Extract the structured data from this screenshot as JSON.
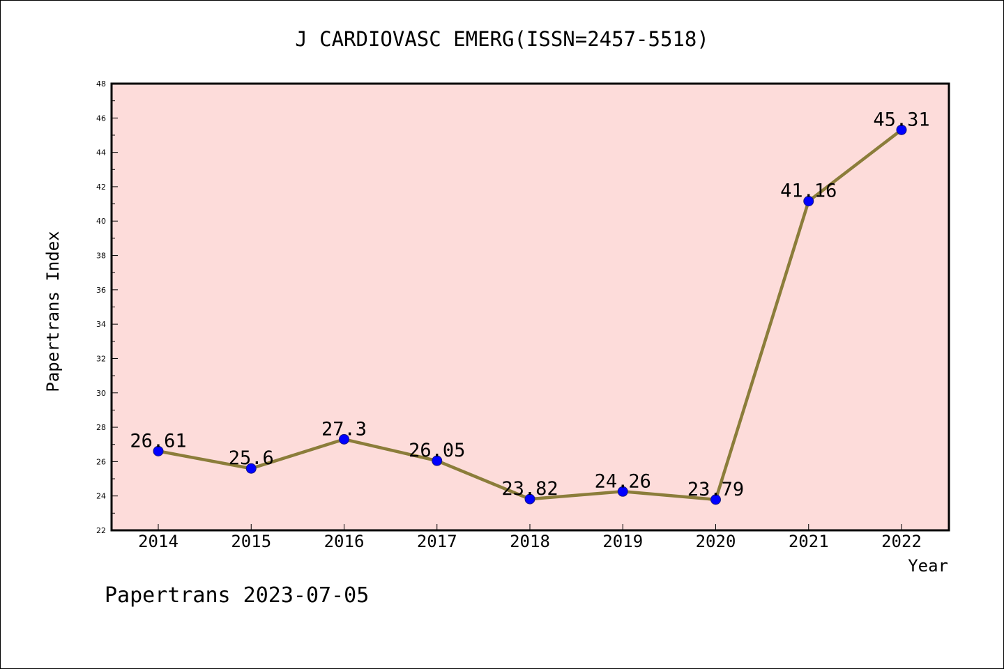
{
  "chart_data": {
    "type": "line",
    "title": "J CARDIOVASC EMERG(ISSN=2457-5518)",
    "xlabel": "Year",
    "ylabel": "Papertrans Index",
    "footer": "Papertrans 2023-07-05",
    "categories": [
      "2014",
      "2015",
      "2016",
      "2017",
      "2018",
      "2019",
      "2020",
      "2021",
      "2022"
    ],
    "series": [
      {
        "values": [
          26.61,
          25.6,
          27.3,
          26.05,
          23.82,
          24.26,
          23.79,
          41.16,
          45.31
        ],
        "labels": [
          "26.61",
          "25.6",
          "27.3",
          "26.05",
          "23.82",
          "24.26",
          "23.79",
          "41.16",
          "45.31"
        ],
        "line_color": "#8b7d3a",
        "marker_color": "#0000ff"
      }
    ],
    "ylim": [
      22,
      48
    ],
    "yticks": [
      "22",
      "24",
      "26",
      "28",
      "30",
      "32",
      "34",
      "36",
      "38",
      "40",
      "42",
      "44",
      "46",
      "48"
    ],
    "plot_background": "#fddcda",
    "grid": false
  }
}
